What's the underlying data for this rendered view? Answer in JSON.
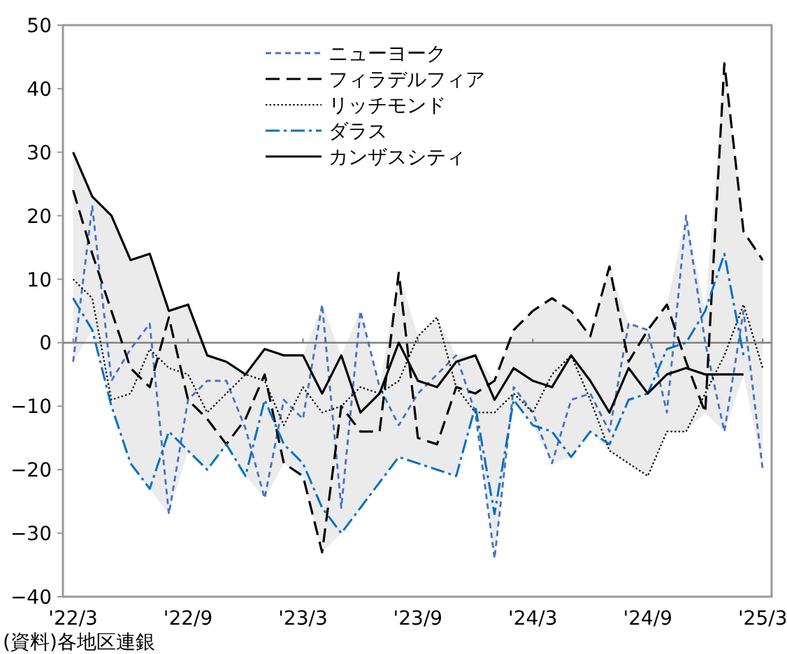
{
  "chart_data": {
    "type": "line",
    "x": [
      "2022-03",
      "2022-04",
      "2022-05",
      "2022-06",
      "2022-07",
      "2022-08",
      "2022-09",
      "2022-10",
      "2022-11",
      "2022-12",
      "2023-01",
      "2023-02",
      "2023-03",
      "2023-04",
      "2023-05",
      "2023-06",
      "2023-07",
      "2023-08",
      "2023-09",
      "2023-10",
      "2023-11",
      "2023-12",
      "2024-01",
      "2024-02",
      "2024-03",
      "2024-04",
      "2024-05",
      "2024-06",
      "2024-07",
      "2024-08",
      "2024-09",
      "2024-10",
      "2024-11",
      "2024-12",
      "2025-01",
      "2025-02",
      "2025-03"
    ],
    "series": [
      {
        "name": "ニューヨーク",
        "color": "#4472c4",
        "line_style": "dashed",
        "values": [
          -3,
          21.5,
          -6,
          -1,
          3,
          -27,
          -9,
          -6,
          -6,
          -13.5,
          -24.5,
          -9,
          -12,
          6,
          -26,
          5,
          -7,
          -13,
          -8,
          -5,
          -2,
          -11,
          -34,
          -7,
          -11,
          -19,
          -9,
          -8,
          -14,
          3,
          2,
          -11,
          20,
          0,
          -14,
          5,
          -20
        ]
      },
      {
        "name": "フィラデルフィア",
        "color": "#000000",
        "line_style": "longdash",
        "values": [
          24,
          14,
          5,
          -4,
          -7,
          4,
          -9,
          -12,
          -16,
          -12,
          -5,
          -19,
          -21,
          -33,
          -10,
          -14,
          -14,
          11,
          -15,
          -16,
          -7,
          -8,
          -6,
          2,
          5,
          7,
          5,
          1,
          12,
          -3,
          2,
          6,
          -3,
          -11,
          44,
          17.5,
          13
        ]
      },
      {
        "name": "リッチモンド",
        "color": "#000000",
        "line_style": "dotted",
        "values": [
          10,
          7,
          -9,
          -8,
          -1,
          -4,
          -5,
          -11,
          -8,
          -5,
          -6,
          -13,
          -7,
          -11,
          -10,
          -7,
          -8,
          -6,
          1,
          4,
          -7,
          -11,
          -11,
          -8,
          -11,
          -5,
          -2,
          -9,
          -17,
          -19,
          -21,
          -14,
          -14,
          -8,
          -2,
          6,
          -4
        ]
      },
      {
        "name": "ダラス",
        "color": "#0070c0",
        "line_style": "dashdot",
        "values": [
          7,
          2,
          -10,
          -19,
          -23,
          -14,
          -17,
          -20,
          -16,
          -21,
          -9,
          -16,
          -19,
          -26,
          -30,
          -26,
          -22,
          -18,
          -19,
          -20,
          -21,
          -10,
          -27,
          -9,
          -13,
          -14,
          -18,
          -14,
          -16,
          -9,
          -8,
          -1,
          0,
          5,
          14,
          -2,
          null
        ]
      },
      {
        "name": "カンザスシティ",
        "color": "#000000",
        "line_style": "solid",
        "lower": [
          -3,
          2,
          -10,
          -19,
          -23,
          -27,
          -17,
          -20,
          -16,
          -21,
          -24.5,
          -19,
          -21,
          -33,
          -30,
          -26,
          -22,
          -18,
          -19,
          -20,
          -21,
          -11,
          -34,
          -9,
          -13,
          -19,
          -18,
          -14,
          -17,
          -19,
          -21,
          -14,
          -14,
          -11,
          -14,
          -5,
          -20
        ],
        "upper": [
          30,
          23,
          20,
          13,
          14,
          5,
          6,
          -2,
          -3,
          -5,
          -1,
          -2,
          -2,
          6,
          -2,
          5,
          -7,
          11,
          1,
          4,
          -2,
          -2,
          -6,
          2,
          5,
          7,
          5,
          1,
          12,
          3,
          2,
          6,
          20,
          5,
          44,
          17.5,
          13
        ],
        "values": [
          30,
          23,
          20,
          13,
          14,
          5,
          6,
          -2,
          -3,
          -5,
          -1,
          -2,
          -2,
          -8,
          -2,
          -11,
          -8,
          0,
          -6,
          -7,
          -3,
          -2,
          -9,
          -4,
          -6,
          -7,
          -2,
          -6,
          -11,
          -4,
          -8,
          -5,
          -4,
          -5,
          -5,
          -5,
          null
        ]
      }
    ],
    "xlim": [
      "2022-02-15",
      "2025-03-15"
    ],
    "xticks": [
      {
        "value": "2022-03",
        "label": "'22/3"
      },
      {
        "value": "2022-09",
        "label": "'22/9"
      },
      {
        "value": "2023-03",
        "label": "'23/3"
      },
      {
        "value": "2023-09",
        "label": "'23/9"
      },
      {
        "value": "2024-03",
        "label": "'24/3"
      },
      {
        "value": "2024-09",
        "label": "'24/9"
      },
      {
        "value": "2025-03",
        "label": "'25/3"
      }
    ],
    "ylim": [
      -40,
      50
    ],
    "yticks": [
      -40,
      -30,
      -20,
      -10,
      0,
      10,
      20,
      30,
      40,
      50
    ],
    "ref_lines": [
      {
        "axis": "y",
        "value": 0,
        "color": "#808080"
      }
    ],
    "legend": "top",
    "grid": false,
    "annotations": [
      "(資料)各地区連銀"
    ]
  }
}
